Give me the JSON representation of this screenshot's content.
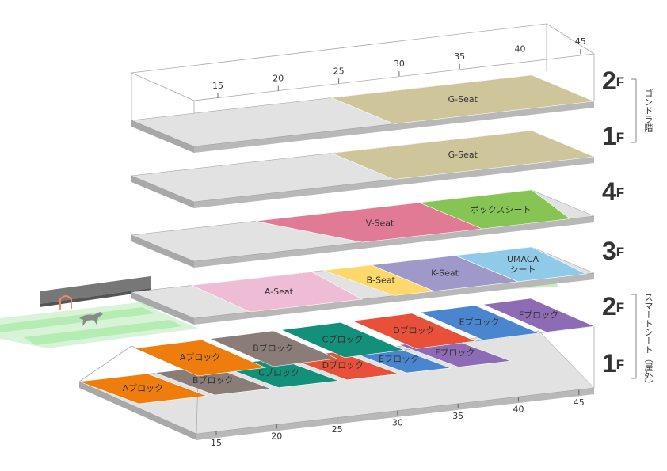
{
  "top_ruler": [
    15,
    20,
    25,
    30,
    35,
    40,
    45
  ],
  "bottom_ruler": [
    15,
    20,
    25,
    30,
    35,
    40,
    45
  ],
  "side_labels": [
    "ゴンドラ階",
    "スマートシート（屋外）"
  ],
  "levels": [
    {
      "floor": {
        "number": "2",
        "unit": "F"
      },
      "sections": [
        {
          "label": "G-Seat",
          "color": "#cfc59b"
        }
      ]
    },
    {
      "floor": {
        "number": "1",
        "unit": "F"
      },
      "sections": [
        {
          "label": "G-Seat",
          "color": "#cfc59b"
        }
      ]
    },
    {
      "floor": {
        "number": "4",
        "unit": "F"
      },
      "sections": [
        {
          "label": "V-Seat",
          "color": "#e07a95"
        },
        {
          "label": "ボックスシート",
          "color": "#86c553"
        }
      ]
    },
    {
      "floor": {
        "number": "3",
        "unit": "F"
      },
      "sections": [
        {
          "label": "A-Seat",
          "color": "#eebcd4"
        },
        {
          "label": "B-Seat",
          "color": "#fcd96a"
        },
        {
          "label": "K-Seat",
          "color": "#9e99c9"
        },
        {
          "label": [
            "UMACA",
            "シート"
          ],
          "color": "#8fcbe8"
        }
      ]
    },
    {
      "floor": {
        "number": "2",
        "unit": "F"
      },
      "sections": [
        {
          "label": "Aブロック",
          "color": "#ef7d0e"
        },
        {
          "label": "Bブロック",
          "color": "#8a7c76"
        },
        {
          "label": "Cブロック",
          "color": "#12907a"
        },
        {
          "label": "Dブロック",
          "color": "#e8503a"
        },
        {
          "label": "Eブロック",
          "color": "#4a86cf"
        },
        {
          "label": "Fブロック",
          "color": "#8d6bb5"
        }
      ]
    },
    {
      "floor": {
        "number": "1",
        "unit": "F"
      },
      "sections": [
        {
          "label": "Aブロック",
          "color": "#ef7d0e"
        },
        {
          "label": "Bブロック",
          "color": "#8a7c76"
        },
        {
          "label": "Cブロック",
          "color": "#12907a"
        },
        {
          "label": "Dブロック",
          "color": "#e8503a"
        },
        {
          "label": "Eブロック",
          "color": "#4a86cf"
        },
        {
          "label": "Fブロック",
          "color": "#8d6bb5"
        }
      ]
    }
  ]
}
